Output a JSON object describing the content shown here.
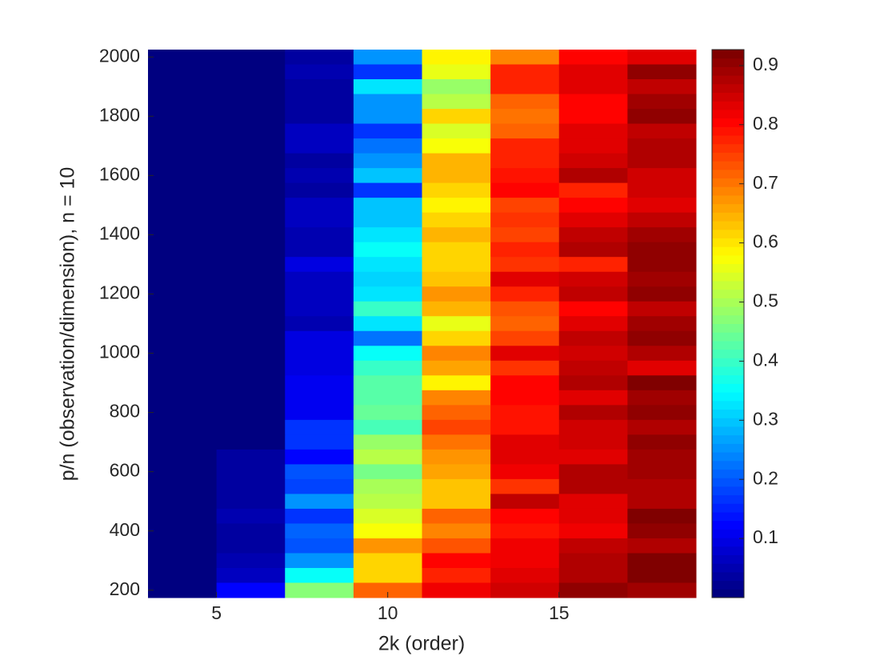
{
  "chart_data": {
    "type": "heatmap",
    "x_label": "2k (order)",
    "y_label": "p/n (observation/dimension), n = 10",
    "x": [
      4,
      6,
      8,
      10,
      12,
      14,
      16,
      18
    ],
    "y": [
      2000,
      1950,
      1900,
      1850,
      1800,
      1750,
      1700,
      1650,
      1600,
      1550,
      1500,
      1450,
      1400,
      1350,
      1300,
      1250,
      1200,
      1150,
      1100,
      1050,
      1000,
      950,
      900,
      850,
      800,
      750,
      700,
      650,
      600,
      550,
      500,
      450,
      400,
      350,
      300,
      250,
      200
    ],
    "z": [
      [
        0.01,
        0.01,
        0.04,
        0.26,
        0.58,
        0.69,
        0.81,
        0.83
      ],
      [
        0.01,
        0.01,
        0.05,
        0.17,
        0.56,
        0.78,
        0.84,
        0.9
      ],
      [
        0.01,
        0.01,
        0.03,
        0.33,
        0.48,
        0.78,
        0.84,
        0.86
      ],
      [
        0.01,
        0.01,
        0.04,
        0.26,
        0.52,
        0.71,
        0.81,
        0.89
      ],
      [
        0.01,
        0.01,
        0.03,
        0.25,
        0.62,
        0.7,
        0.81,
        0.91
      ],
      [
        0.01,
        0.01,
        0.07,
        0.16,
        0.55,
        0.72,
        0.83,
        0.86
      ],
      [
        0.01,
        0.01,
        0.06,
        0.23,
        0.57,
        0.77,
        0.83,
        0.87
      ],
      [
        0.01,
        0.01,
        0.04,
        0.26,
        0.64,
        0.78,
        0.85,
        0.87
      ],
      [
        0.01,
        0.01,
        0.05,
        0.3,
        0.64,
        0.79,
        0.87,
        0.85
      ],
      [
        0.01,
        0.01,
        0.03,
        0.17,
        0.62,
        0.8,
        0.78,
        0.85
      ],
      [
        0.01,
        0.01,
        0.06,
        0.3,
        0.58,
        0.75,
        0.8,
        0.83
      ],
      [
        0.01,
        0.01,
        0.06,
        0.3,
        0.62,
        0.76,
        0.84,
        0.86
      ],
      [
        0.01,
        0.01,
        0.05,
        0.33,
        0.64,
        0.74,
        0.86,
        0.89
      ],
      [
        0.01,
        0.01,
        0.05,
        0.35,
        0.62,
        0.77,
        0.88,
        0.91
      ],
      [
        0.01,
        0.01,
        0.09,
        0.33,
        0.61,
        0.76,
        0.78,
        0.91
      ],
      [
        0.01,
        0.01,
        0.06,
        0.31,
        0.63,
        0.84,
        0.85,
        0.89
      ],
      [
        0.01,
        0.01,
        0.06,
        0.32,
        0.67,
        0.77,
        0.86,
        0.91
      ],
      [
        0.01,
        0.01,
        0.07,
        0.4,
        0.65,
        0.73,
        0.81,
        0.86
      ],
      [
        0.01,
        0.01,
        0.05,
        0.33,
        0.56,
        0.72,
        0.83,
        0.89
      ],
      [
        0.01,
        0.01,
        0.1,
        0.22,
        0.62,
        0.75,
        0.86,
        0.91
      ],
      [
        0.01,
        0.01,
        0.1,
        0.36,
        0.69,
        0.83,
        0.85,
        0.87
      ],
      [
        0.01,
        0.01,
        0.09,
        0.4,
        0.66,
        0.76,
        0.86,
        0.83
      ],
      [
        0.01,
        0.01,
        0.11,
        0.43,
        0.59,
        0.81,
        0.87,
        0.92
      ],
      [
        0.01,
        0.01,
        0.11,
        0.43,
        0.69,
        0.8,
        0.84,
        0.89
      ],
      [
        0.01,
        0.01,
        0.11,
        0.44,
        0.72,
        0.79,
        0.88,
        0.9
      ],
      [
        0.01,
        0.01,
        0.17,
        0.42,
        0.75,
        0.79,
        0.85,
        0.88
      ],
      [
        0.01,
        0.01,
        0.17,
        0.48,
        0.7,
        0.83,
        0.85,
        0.91
      ],
      [
        0.01,
        0.03,
        0.12,
        0.52,
        0.68,
        0.84,
        0.84,
        0.89
      ],
      [
        0.01,
        0.03,
        0.19,
        0.45,
        0.66,
        0.82,
        0.87,
        0.89
      ],
      [
        0.01,
        0.03,
        0.18,
        0.5,
        0.63,
        0.76,
        0.88,
        0.88
      ],
      [
        0.01,
        0.03,
        0.25,
        0.52,
        0.63,
        0.86,
        0.84,
        0.87
      ],
      [
        0.01,
        0.05,
        0.17,
        0.55,
        0.72,
        0.8,
        0.83,
        0.92
      ],
      [
        0.01,
        0.04,
        0.21,
        0.57,
        0.69,
        0.79,
        0.82,
        0.9
      ],
      [
        0.01,
        0.04,
        0.2,
        0.67,
        0.73,
        0.82,
        0.86,
        0.88
      ],
      [
        0.01,
        0.05,
        0.26,
        0.62,
        0.81,
        0.82,
        0.88,
        0.93
      ],
      [
        0.01,
        0.06,
        0.36,
        0.62,
        0.77,
        0.84,
        0.88,
        0.92
      ],
      [
        0.01,
        0.12,
        0.47,
        0.71,
        0.82,
        0.85,
        0.9,
        0.89
      ]
    ],
    "xlim": [
      3,
      19
    ],
    "ylim": [
      175,
      2025
    ],
    "xticks": [
      5,
      10,
      15
    ],
    "yticks": [
      200,
      400,
      600,
      800,
      1000,
      1200,
      1400,
      1600,
      1800,
      2000
    ],
    "colormap": "jet",
    "clim": [
      0,
      0.927
    ],
    "cticks": [
      0.1,
      0.2,
      0.3,
      0.4,
      0.5,
      0.6,
      0.7,
      0.8,
      0.9
    ]
  }
}
